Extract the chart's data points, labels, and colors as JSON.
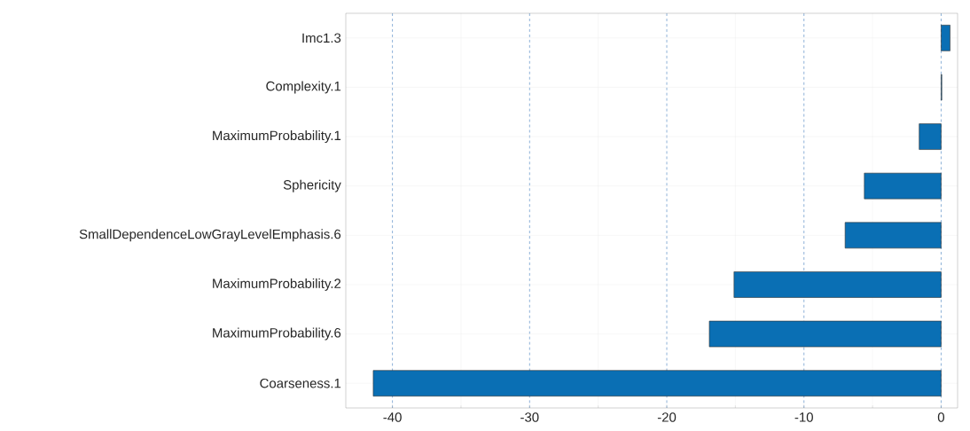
{
  "chart_data": {
    "type": "bar",
    "orientation": "horizontal",
    "categories": [
      "Imc1.3",
      "Complexity.1",
      "MaximumProbability.1",
      "Sphericity",
      "SmallDependenceLowGrayLevelEmphasis.6",
      "MaximumProbability.2",
      "MaximumProbability.6",
      "Coarseness.1"
    ],
    "values": [
      0.65,
      0.05,
      -1.6,
      -5.6,
      -7.0,
      -15.1,
      -16.9,
      -41.4
    ],
    "color": "#0a6fb4",
    "xlim": [
      -43.4,
      1.2
    ],
    "xticks": [
      -40,
      -30,
      -20,
      -10,
      0
    ],
    "grid": true
  }
}
